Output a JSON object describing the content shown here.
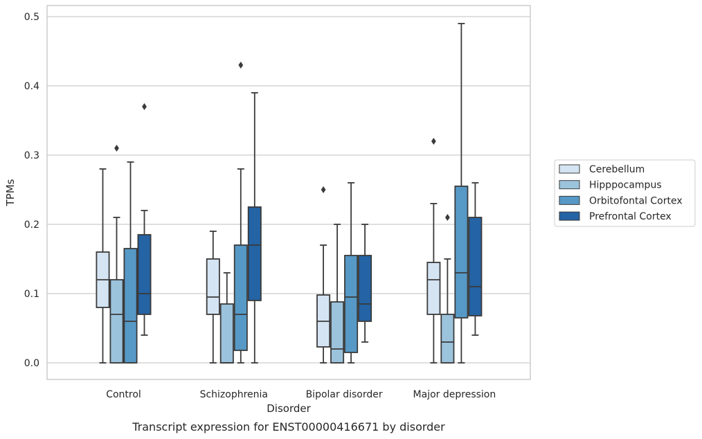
{
  "caption": "Transcript expression for ENST00000416671 by disorder",
  "chart_data": {
    "type": "box",
    "title": "",
    "xlabel": "Disorder",
    "ylabel": "TPMs",
    "ylim": [
      -0.023,
      0.515
    ],
    "yticks": [
      0.0,
      0.1,
      0.2,
      0.3,
      0.4,
      0.5
    ],
    "ytick_labels": [
      "0.0",
      "0.1",
      "0.2",
      "0.3",
      "0.4",
      "0.5"
    ],
    "grid": "horizontal",
    "legend_position": "right",
    "categories": [
      "Control",
      "Schizophrenia",
      "Bipolar disorder",
      "Major depression"
    ],
    "series": [
      {
        "name": "Cerebellum",
        "color": "#d5e4f3",
        "boxes": [
          {
            "whislo": 0.0,
            "q1": 0.08,
            "med": 0.12,
            "q3": 0.16,
            "whishi": 0.28,
            "fliers": []
          },
          {
            "whislo": 0.0,
            "q1": 0.07,
            "med": 0.095,
            "q3": 0.15,
            "whishi": 0.19,
            "fliers": []
          },
          {
            "whislo": 0.0,
            "q1": 0.023,
            "med": 0.06,
            "q3": 0.098,
            "whishi": 0.17,
            "fliers": [
              0.25
            ]
          },
          {
            "whislo": 0.0,
            "q1": 0.07,
            "med": 0.12,
            "q3": 0.145,
            "whishi": 0.23,
            "fliers": [
              0.32
            ]
          }
        ]
      },
      {
        "name": "Hipppocampus",
        "color": "#9cc3dc",
        "boxes": [
          {
            "whislo": 0.0,
            "q1": 0.0,
            "med": 0.07,
            "q3": 0.12,
            "whishi": 0.21,
            "fliers": [
              0.31
            ]
          },
          {
            "whislo": 0.0,
            "q1": 0.0,
            "med": 0.0,
            "q3": 0.085,
            "whishi": 0.13,
            "fliers": []
          },
          {
            "whislo": 0.0,
            "q1": 0.0,
            "med": 0.02,
            "q3": 0.088,
            "whishi": 0.2,
            "fliers": []
          },
          {
            "whislo": 0.0,
            "q1": 0.0,
            "med": 0.03,
            "q3": 0.07,
            "whishi": 0.15,
            "fliers": [
              0.21
            ]
          }
        ]
      },
      {
        "name": "Orbitofontal Cortex",
        "color": "#5799c6",
        "boxes": [
          {
            "whislo": 0.0,
            "q1": 0.0,
            "med": 0.06,
            "q3": 0.165,
            "whishi": 0.29,
            "fliers": []
          },
          {
            "whislo": 0.0,
            "q1": 0.018,
            "med": 0.07,
            "q3": 0.17,
            "whishi": 0.28,
            "fliers": [
              0.43
            ]
          },
          {
            "whislo": 0.0,
            "q1": 0.015,
            "med": 0.095,
            "q3": 0.155,
            "whishi": 0.26,
            "fliers": []
          },
          {
            "whislo": 0.0,
            "q1": 0.065,
            "med": 0.13,
            "q3": 0.255,
            "whishi": 0.49,
            "fliers": []
          }
        ]
      },
      {
        "name": "Prefrontal Cortex",
        "color": "#2463a4",
        "boxes": [
          {
            "whislo": 0.04,
            "q1": 0.07,
            "med": 0.1,
            "q3": 0.185,
            "whishi": 0.22,
            "fliers": [
              0.37
            ]
          },
          {
            "whislo": 0.0,
            "q1": 0.09,
            "med": 0.17,
            "q3": 0.225,
            "whishi": 0.39,
            "fliers": []
          },
          {
            "whislo": 0.03,
            "q1": 0.06,
            "med": 0.085,
            "q3": 0.155,
            "whishi": 0.2,
            "fliers": []
          },
          {
            "whislo": 0.04,
            "q1": 0.068,
            "med": 0.11,
            "q3": 0.21,
            "whishi": 0.26,
            "fliers": []
          }
        ]
      }
    ]
  }
}
